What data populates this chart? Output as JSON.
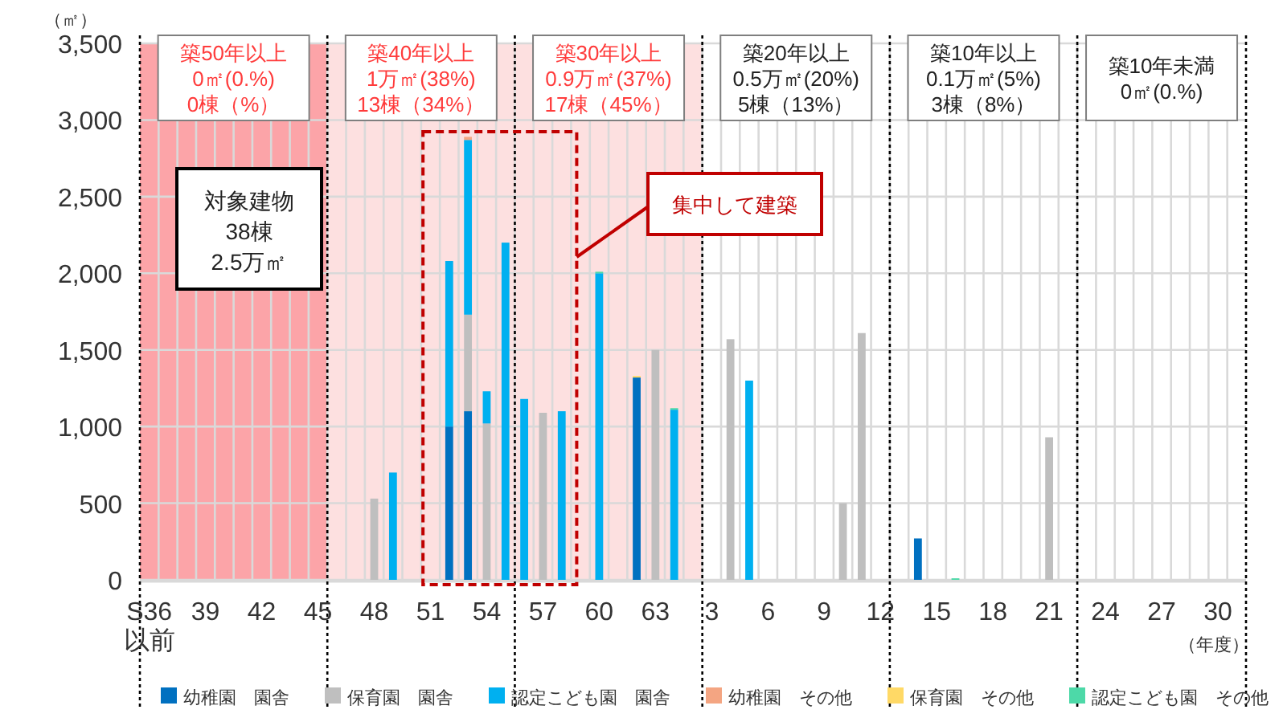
{
  "chart_data": {
    "type": "bar",
    "stacked": true,
    "ylabel": "（㎡）",
    "xlabel": "（年度）",
    "categories": [
      "S36\n以前",
      null,
      null,
      "39",
      null,
      null,
      "42",
      null,
      null,
      "45",
      null,
      null,
      "48",
      null,
      null,
      "51",
      null,
      null,
      "54",
      null,
      null,
      "57",
      null,
      null,
      "60",
      null,
      null,
      "63",
      null,
      null,
      "3",
      null,
      null,
      "6",
      null,
      null,
      "9",
      null,
      null,
      "12",
      null,
      null,
      "15",
      null,
      null,
      "18",
      null,
      null,
      "21",
      null,
      null,
      "24",
      null,
      null,
      "27",
      null,
      null,
      "30",
      null
    ],
    "ylim": [
      0,
      3500
    ],
    "yticks": [
      {
        "value": 0,
        "label": "0"
      },
      {
        "value": 500,
        "label": "500"
      },
      {
        "value": 1000,
        "label": "1,000"
      },
      {
        "value": 1500,
        "label": "1,500"
      },
      {
        "value": 2000,
        "label": "2,000"
      },
      {
        "value": 2500,
        "label": "2,500"
      },
      {
        "value": 3000,
        "label": "3,000"
      },
      {
        "value": 3500,
        "label": "3,500"
      }
    ],
    "grid": true,
    "legend": "bottom",
    "series": [
      {
        "name": "幼稚園　園舎",
        "color": "#0070c0",
        "values": [
          null,
          null,
          null,
          null,
          null,
          null,
          null,
          null,
          null,
          null,
          null,
          null,
          null,
          null,
          null,
          null,
          1000,
          1100,
          null,
          null,
          null,
          null,
          null,
          null,
          null,
          null,
          1320,
          null,
          null,
          null,
          null,
          null,
          null,
          null,
          null,
          null,
          null,
          null,
          null,
          null,
          null,
          270,
          null,
          null,
          null,
          null,
          null,
          null,
          null,
          null,
          null,
          null,
          null,
          null,
          null,
          null,
          null,
          null,
          null
        ]
      },
      {
        "name": "保育園　園舎",
        "color": "#bfbfbf",
        "values": [
          null,
          null,
          null,
          null,
          null,
          null,
          null,
          null,
          null,
          null,
          null,
          null,
          530,
          null,
          null,
          null,
          null,
          630,
          1020,
          null,
          null,
          1090,
          null,
          null,
          null,
          null,
          null,
          1500,
          null,
          null,
          null,
          1570,
          null,
          null,
          null,
          null,
          null,
          500,
          1610,
          null,
          null,
          null,
          null,
          null,
          null,
          null,
          null,
          null,
          930,
          null,
          null,
          null,
          null,
          null,
          null,
          null,
          null,
          null,
          null
        ]
      },
      {
        "name": "認定こども園　園舎",
        "color": "#00b0f0",
        "values": [
          null,
          null,
          null,
          null,
          null,
          null,
          null,
          null,
          null,
          null,
          null,
          null,
          null,
          700,
          null,
          null,
          1080,
          1140,
          210,
          2200,
          1180,
          null,
          1100,
          null,
          2000,
          null,
          null,
          null,
          1110,
          null,
          null,
          null,
          1300,
          null,
          null,
          null,
          null,
          null,
          null,
          null,
          null,
          null,
          null,
          null,
          null,
          null,
          null,
          null,
          null,
          null,
          null,
          null,
          null,
          null,
          null,
          null,
          null,
          null,
          null
        ]
      },
      {
        "name": "幼稚園　その他",
        "color": "#f4a582",
        "values": [
          null,
          null,
          null,
          null,
          null,
          null,
          null,
          null,
          null,
          null,
          null,
          null,
          null,
          null,
          null,
          null,
          null,
          20,
          null,
          null,
          null,
          null,
          null,
          null,
          null,
          null,
          null,
          null,
          null,
          null,
          null,
          null,
          null,
          null,
          null,
          null,
          null,
          null,
          null,
          null,
          null,
          null,
          null,
          null,
          null,
          null,
          null,
          null,
          null,
          null,
          null,
          null,
          null,
          null,
          null,
          null,
          null,
          null,
          null
        ]
      },
      {
        "name": "保育園　その他",
        "color": "#ffd966",
        "values": [
          null,
          null,
          null,
          null,
          null,
          null,
          null,
          null,
          null,
          null,
          null,
          null,
          null,
          null,
          null,
          null,
          null,
          null,
          null,
          null,
          null,
          null,
          null,
          null,
          null,
          null,
          10,
          null,
          null,
          null,
          null,
          null,
          null,
          null,
          null,
          null,
          null,
          null,
          null,
          null,
          null,
          null,
          null,
          null,
          null,
          null,
          null,
          null,
          null,
          null,
          null,
          null,
          null,
          null,
          null,
          null,
          null,
          null,
          null
        ]
      },
      {
        "name": "認定こども園　その他",
        "color": "#4dd9a8",
        "values": [
          null,
          null,
          null,
          null,
          null,
          null,
          null,
          null,
          null,
          null,
          null,
          null,
          null,
          null,
          null,
          null,
          null,
          null,
          null,
          null,
          null,
          null,
          null,
          null,
          10,
          null,
          null,
          null,
          10,
          null,
          null,
          null,
          null,
          null,
          null,
          null,
          null,
          null,
          null,
          null,
          null,
          null,
          null,
          10,
          null,
          null,
          null,
          null,
          null,
          null,
          null,
          null,
          null,
          null,
          null,
          null,
          null,
          null,
          null
        ]
      }
    ],
    "annotations": [
      "築50年以上\n0㎡(0.%)\n0棟（%）",
      "築40年以上\n1万㎡(38%)\n13棟（34%）",
      "築30年以上\n0.9万㎡(37%)\n17棟（45%）",
      "築20年以上\n0.5万㎡(20%)\n5棟（13%）",
      "築10年以上\n0.1万㎡(5%)\n3棟（8%）",
      "築10年未満\n0㎡(0.%)",
      "対象建物\n38棟\n2.5万㎡",
      "集中して建築"
    ]
  }
}
